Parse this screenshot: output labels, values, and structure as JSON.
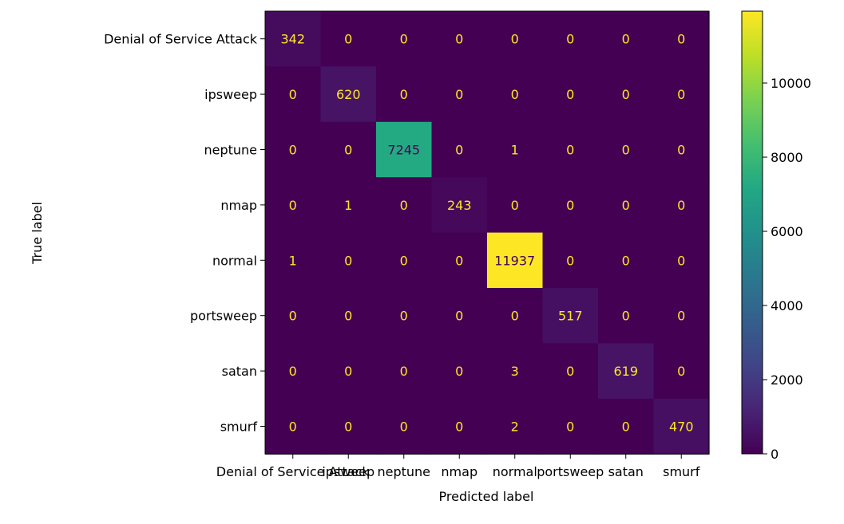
{
  "chart_data": {
    "type": "heatmap",
    "title": "",
    "xlabel": "Predicted label",
    "ylabel": "True label",
    "row_labels": [
      "Denial of Service Attack",
      "ipsweep",
      "neptune",
      "nmap",
      "normal",
      "portsweep",
      "satan",
      "smurf"
    ],
    "col_labels": [
      "Denial of Service Attack",
      "ipsweep",
      "neptune",
      "nmap",
      "normal",
      "portsweep",
      "satan",
      "smurf"
    ],
    "values": [
      [
        342,
        0,
        0,
        0,
        0,
        0,
        0,
        0
      ],
      [
        0,
        620,
        0,
        0,
        0,
        0,
        0,
        0
      ],
      [
        0,
        0,
        7245,
        0,
        1,
        0,
        0,
        0
      ],
      [
        0,
        1,
        0,
        243,
        0,
        0,
        0,
        0
      ],
      [
        1,
        0,
        0,
        0,
        11937,
        0,
        0,
        0
      ],
      [
        0,
        0,
        0,
        0,
        0,
        517,
        0,
        0
      ],
      [
        0,
        0,
        0,
        0,
        3,
        0,
        619,
        0
      ],
      [
        0,
        0,
        0,
        0,
        2,
        0,
        0,
        470
      ]
    ],
    "colormap": "viridis",
    "value_range": [
      0,
      11937
    ],
    "colorbar_ticks": [
      0,
      2000,
      4000,
      6000,
      8000,
      10000
    ],
    "grid": false,
    "colorbar_position": "right"
  }
}
